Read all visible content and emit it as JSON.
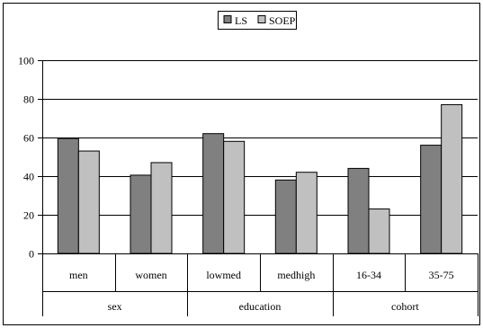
{
  "chart_data": {
    "type": "bar",
    "series": [
      {
        "name": "LS",
        "values": [
          59.5,
          40.5,
          62,
          38,
          44,
          56
        ],
        "color": "#808080"
      },
      {
        "name": "SOEP",
        "values": [
          53,
          47,
          58,
          42,
          23,
          77
        ],
        "color": "#c0c0c0"
      }
    ],
    "categories": [
      "men",
      "women",
      "lowmed",
      "medhigh",
      "16-34",
      "35-75"
    ],
    "groups": [
      {
        "label": "sex",
        "categories": [
          "men",
          "women"
        ]
      },
      {
        "label": "education",
        "categories": [
          "lowmed",
          "medhigh"
        ]
      },
      {
        "label": "cohort",
        "categories": [
          "16-34",
          "35-75"
        ]
      }
    ],
    "ylim": [
      0,
      100
    ],
    "yticks": [
      0,
      20,
      40,
      60,
      80,
      100
    ],
    "grid": true,
    "legend_position": "top-center",
    "title": "",
    "xlabel": "",
    "ylabel": ""
  }
}
